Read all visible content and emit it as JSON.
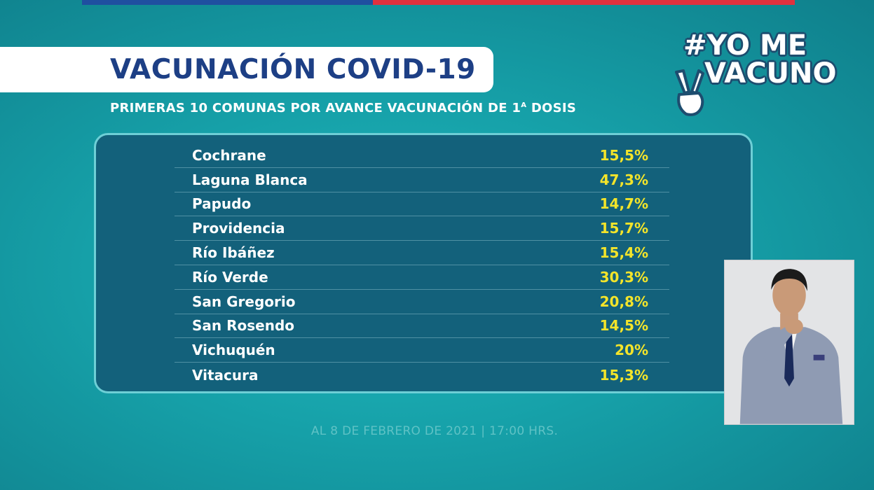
{
  "header": {
    "title": "VACUNACIÓN COVID-19",
    "subtitle_main": "PRIMERAS 10 COMUNAS POR AVANCE VACUNACIÓN DE 1",
    "subtitle_sup": "A",
    "subtitle_end": " DOSIS"
  },
  "logo": {
    "line1": "#YO ME",
    "line2": "VACUNO",
    "icon": "victory-hand-icon"
  },
  "table": {
    "rows": [
      {
        "comuna": "Cochrane",
        "avance": "15,5%"
      },
      {
        "comuna": "Laguna Blanca",
        "avance": "47,3%"
      },
      {
        "comuna": "Papudo",
        "avance": "14,7%"
      },
      {
        "comuna": "Providencia",
        "avance": "15,7%"
      },
      {
        "comuna": "Río Ibáñez",
        "avance": "15,4%"
      },
      {
        "comuna": "Río Verde",
        "avance": "30,3%"
      },
      {
        "comuna": "San Gregorio",
        "avance": "20,8%"
      },
      {
        "comuna": "San Rosendo",
        "avance": "14,5%"
      },
      {
        "comuna": "Vichuquén",
        "avance": "20%"
      },
      {
        "comuna": "Vitacura",
        "avance": "15,3%"
      }
    ]
  },
  "footer": {
    "date": "AL 8 DE FEBRERO DE 2021 | 17:00 HRS."
  },
  "colors": {
    "background": "#16a0a8",
    "title_blue": "#1d3f85",
    "panel": "#13617b",
    "value_yellow": "#f3e42a",
    "flag_blue": "#1f4fa0",
    "flag_red": "#e0313e"
  }
}
